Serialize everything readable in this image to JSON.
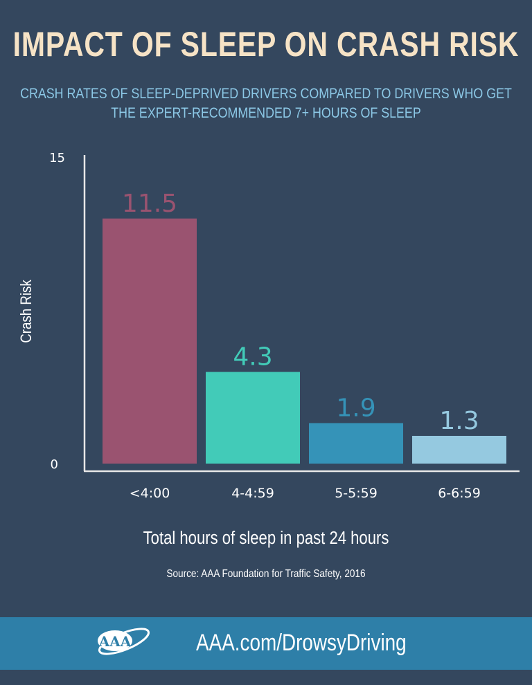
{
  "colors": {
    "background": "#34475e",
    "footer": "#2e7fa8",
    "title": "#f6e3c6",
    "subtitle": "#8cc8e6"
  },
  "chart_data": {
    "type": "bar",
    "title": "IMPACT OF SLEEP ON CRASH RISK",
    "subtitle_lines": [
      "CRASH RATES OF SLEEP-DEPRIVED DRIVERS COMPARED TO DRIVERS WHO GET",
      "THE EXPERT-RECOMMENDED 7+ HOURS OF SLEEP"
    ],
    "categories": [
      "<4:00",
      "4-4:59",
      "5-5:59",
      "6-6:59"
    ],
    "values": [
      11.5,
      4.3,
      1.9,
      1.3
    ],
    "value_labels": [
      "11.5",
      "4.3",
      "1.9",
      "1.3"
    ],
    "bar_colors": [
      "#9a5370",
      "#42cbb8",
      "#3593b8",
      "#95c9e0"
    ],
    "xlabel": "Total hours of sleep in past 24 hours",
    "ylabel": "Crash Risk",
    "ylim": [
      0,
      15
    ],
    "yticks": [
      "0",
      "15"
    ],
    "grid": false,
    "source": "Source: AAA Foundation for Traffic Safety, 2016"
  },
  "footer": {
    "url": "AAA.com/DrowsyDriving",
    "logo_text": "AAA"
  }
}
